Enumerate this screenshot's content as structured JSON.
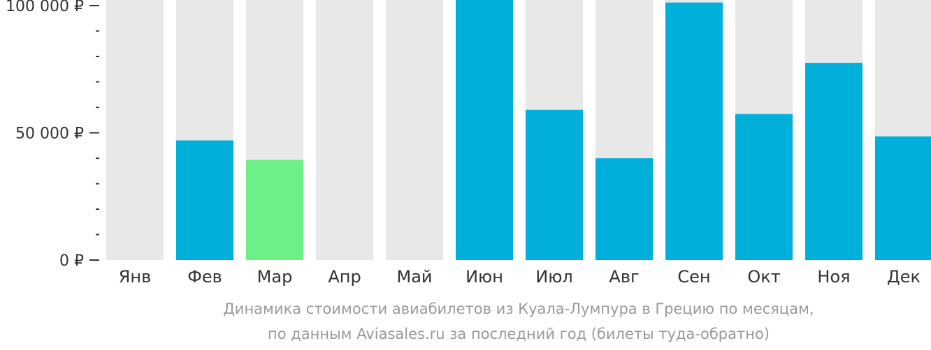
{
  "chart_data": {
    "type": "bar",
    "categories": [
      "Янв",
      "Фев",
      "Мар",
      "Апр",
      "Май",
      "Июн",
      "Июл",
      "Авг",
      "Сен",
      "Окт",
      "Ноя",
      "Дек"
    ],
    "values": [
      null,
      47000,
      39400,
      null,
      null,
      107500,
      59000,
      40000,
      101200,
      57400,
      77500,
      48600
    ],
    "highlight_index": 2,
    "ylim": [
      0,
      100000
    ],
    "y_major_ticks": [
      0,
      50000,
      100000
    ],
    "y_tick_labels": [
      "0 ₽",
      "50 000 ₽",
      "100 000 ₽"
    ],
    "y_minor_step": 10000,
    "colors": {
      "bar": "#00b0db",
      "highlight": "#6cf087",
      "background_column": "#e8e8e8",
      "axis": "#333333"
    }
  },
  "caption": {
    "line1": "Динамика стоимости авиабилетов из Куала-Лумпура в Грецию по месяцам,",
    "line2": "по данным Aviasales.ru за последний год (билеты туда-обратно)"
  }
}
